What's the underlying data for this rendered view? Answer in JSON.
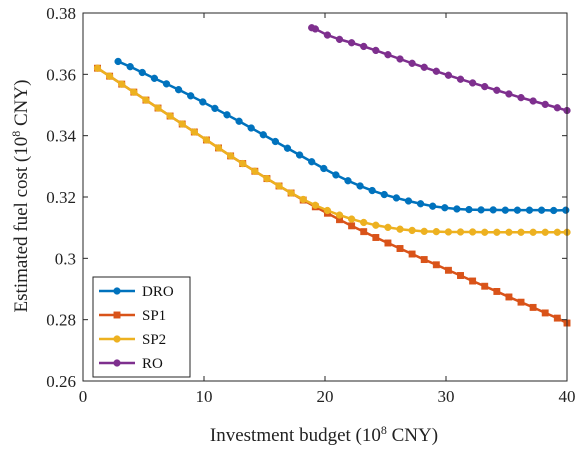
{
  "chart_data": {
    "type": "line",
    "xlabel": "Investment budget (10",
    "xlabel_sup": "8",
    "xlabel_end": " CNY)",
    "ylabel": "Estimated fuel cost (10",
    "ylabel_sup": "8",
    "ylabel_end": " CNY)",
    "xlim": [
      0,
      40
    ],
    "ylim": [
      0.26,
      0.38
    ],
    "x_ticks": [
      0,
      10,
      20,
      30,
      40
    ],
    "x_tick_labels": [
      "0",
      "10",
      "20",
      "30",
      "40"
    ],
    "y_ticks": [
      0.26,
      0.28,
      0.3,
      0.32,
      0.34,
      0.36,
      0.38
    ],
    "y_tick_labels": [
      "0.26",
      "0.28",
      "0.3",
      "0.32",
      "0.34",
      "0.36",
      "0.38"
    ],
    "grid": false,
    "legend_position": "bottom-left",
    "series": [
      {
        "name": "DRO",
        "color": "#0072BD",
        "marker": "circle",
        "x": [
          2.9,
          3.9,
          4.9,
          5.9,
          6.9,
          7.9,
          8.9,
          9.9,
          10.9,
          11.9,
          12.9,
          13.9,
          14.9,
          15.9,
          16.9,
          17.9,
          18.9,
          19.9,
          20.9,
          21.9,
          22.9,
          23.9,
          24.9,
          25.9,
          26.9,
          27.9,
          28.9,
          29.9,
          30.9,
          31.9,
          32.9,
          33.9,
          34.9,
          35.9,
          36.9,
          37.9,
          38.9,
          39.9
        ],
        "y": [
          0.3642,
          0.3625,
          0.3606,
          0.3587,
          0.3569,
          0.355,
          0.353,
          0.351,
          0.3489,
          0.3468,
          0.3447,
          0.3425,
          0.3403,
          0.3381,
          0.3359,
          0.3337,
          0.3315,
          0.3293,
          0.3272,
          0.3253,
          0.3236,
          0.3221,
          0.3208,
          0.3197,
          0.3187,
          0.3178,
          0.317,
          0.3165,
          0.3161,
          0.3159,
          0.3158,
          0.3158,
          0.3157,
          0.3157,
          0.3157,
          0.3157,
          0.3156,
          0.3157
        ]
      },
      {
        "name": "SP1",
        "color": "#D95319",
        "marker": "square",
        "x": [
          1.2,
          2.2,
          3.2,
          4.2,
          5.2,
          6.2,
          7.2,
          8.2,
          9.2,
          10.2,
          11.2,
          12.2,
          13.2,
          14.2,
          15.2,
          16.2,
          17.2,
          18.2,
          19.2,
          20.2,
          21.2,
          22.2,
          23.2,
          24.2,
          25.2,
          26.2,
          27.2,
          28.2,
          29.2,
          30.2,
          31.2,
          32.2,
          33.2,
          34.2,
          35.2,
          36.2,
          37.2,
          38.2,
          39.2,
          40.0
        ],
        "y": [
          0.362,
          0.3594,
          0.3568,
          0.3542,
          0.3516,
          0.349,
          0.3464,
          0.3438,
          0.3412,
          0.3386,
          0.336,
          0.3334,
          0.3309,
          0.3284,
          0.326,
          0.3236,
          0.3213,
          0.319,
          0.3168,
          0.3147,
          0.3126,
          0.3106,
          0.3087,
          0.3068,
          0.305,
          0.3032,
          0.3014,
          0.2996,
          0.2979,
          0.2961,
          0.2944,
          0.2926,
          0.2909,
          0.2892,
          0.2874,
          0.2857,
          0.284,
          0.2822,
          0.2805,
          0.2789
        ]
      },
      {
        "name": "SP2",
        "color": "#EDB120",
        "marker": "circle",
        "x": [
          1.2,
          2.2,
          3.2,
          4.2,
          5.2,
          6.2,
          7.2,
          8.2,
          9.2,
          10.2,
          11.2,
          12.2,
          13.2,
          14.2,
          15.2,
          16.2,
          17.2,
          18.2,
          19.2,
          20.2,
          21.2,
          22.2,
          23.2,
          24.2,
          25.2,
          26.2,
          27.2,
          28.2,
          29.2,
          30.2,
          31.2,
          32.2,
          33.2,
          34.2,
          35.2,
          36.2,
          37.2,
          38.2,
          39.2,
          40.0
        ],
        "y": [
          0.362,
          0.3594,
          0.3568,
          0.3542,
          0.3516,
          0.349,
          0.3464,
          0.3438,
          0.3412,
          0.3386,
          0.336,
          0.3334,
          0.3309,
          0.3284,
          0.326,
          0.3236,
          0.3213,
          0.3192,
          0.3173,
          0.3156,
          0.3141,
          0.3128,
          0.3117,
          0.3108,
          0.3101,
          0.3095,
          0.3091,
          0.3088,
          0.3087,
          0.3086,
          0.3086,
          0.3086,
          0.3085,
          0.3085,
          0.3085,
          0.3085,
          0.3085,
          0.3085,
          0.3085,
          0.3085
        ]
      },
      {
        "name": "RO",
        "color": "#7E2F8E",
        "marker": "circle",
        "x": [
          18.9,
          19.2,
          20.2,
          21.2,
          22.2,
          23.2,
          24.2,
          25.2,
          26.2,
          27.2,
          28.2,
          29.2,
          30.2,
          31.2,
          32.2,
          33.2,
          34.2,
          35.2,
          36.2,
          37.2,
          38.2,
          39.2,
          40.0
        ],
        "y": [
          0.3752,
          0.3748,
          0.3728,
          0.3714,
          0.3703,
          0.3691,
          0.3678,
          0.3664,
          0.365,
          0.3636,
          0.3623,
          0.361,
          0.3597,
          0.3584,
          0.3572,
          0.356,
          0.3548,
          0.3536,
          0.3524,
          0.3513,
          0.3502,
          0.3491,
          0.3482
        ]
      }
    ]
  }
}
